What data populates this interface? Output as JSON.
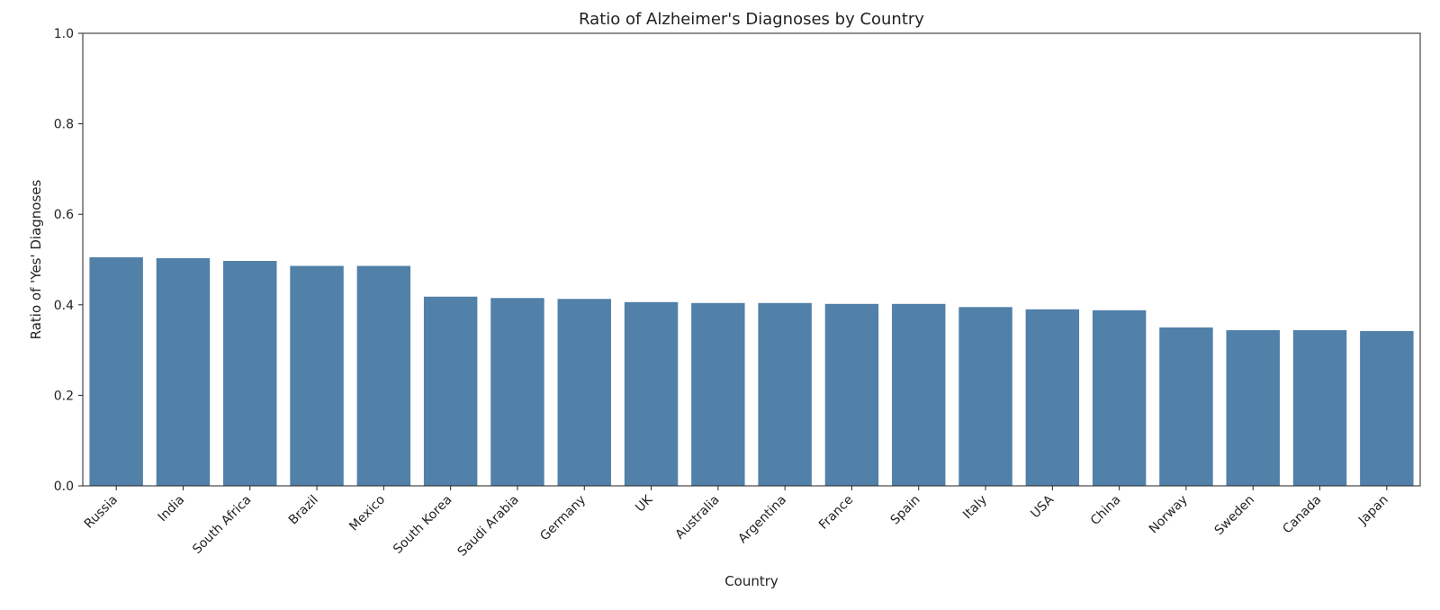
{
  "chart_data": {
    "type": "bar",
    "title": "Ratio of Alzheimer's Diagnoses by Country",
    "xlabel": "Country",
    "ylabel": "Ratio of 'Yes' Diagnoses",
    "categories": [
      "Russia",
      "India",
      "South Africa",
      "Brazil",
      "Mexico",
      "South Korea",
      "Saudi Arabia",
      "Germany",
      "UK",
      "Australia",
      "Argentina",
      "France",
      "Spain",
      "Italy",
      "USA",
      "China",
      "Norway",
      "Sweden",
      "Canada",
      "Japan"
    ],
    "values": [
      0.505,
      0.503,
      0.497,
      0.486,
      0.486,
      0.418,
      0.415,
      0.413,
      0.406,
      0.404,
      0.404,
      0.402,
      0.402,
      0.395,
      0.39,
      0.388,
      0.35,
      0.344,
      0.344,
      0.342
    ],
    "ylim": [
      0,
      1.0
    ],
    "yticks": [
      "0.0",
      "0.2",
      "0.4",
      "0.6",
      "0.8",
      "1.0"
    ],
    "grid": false,
    "bar_color": "#5180a8"
  }
}
